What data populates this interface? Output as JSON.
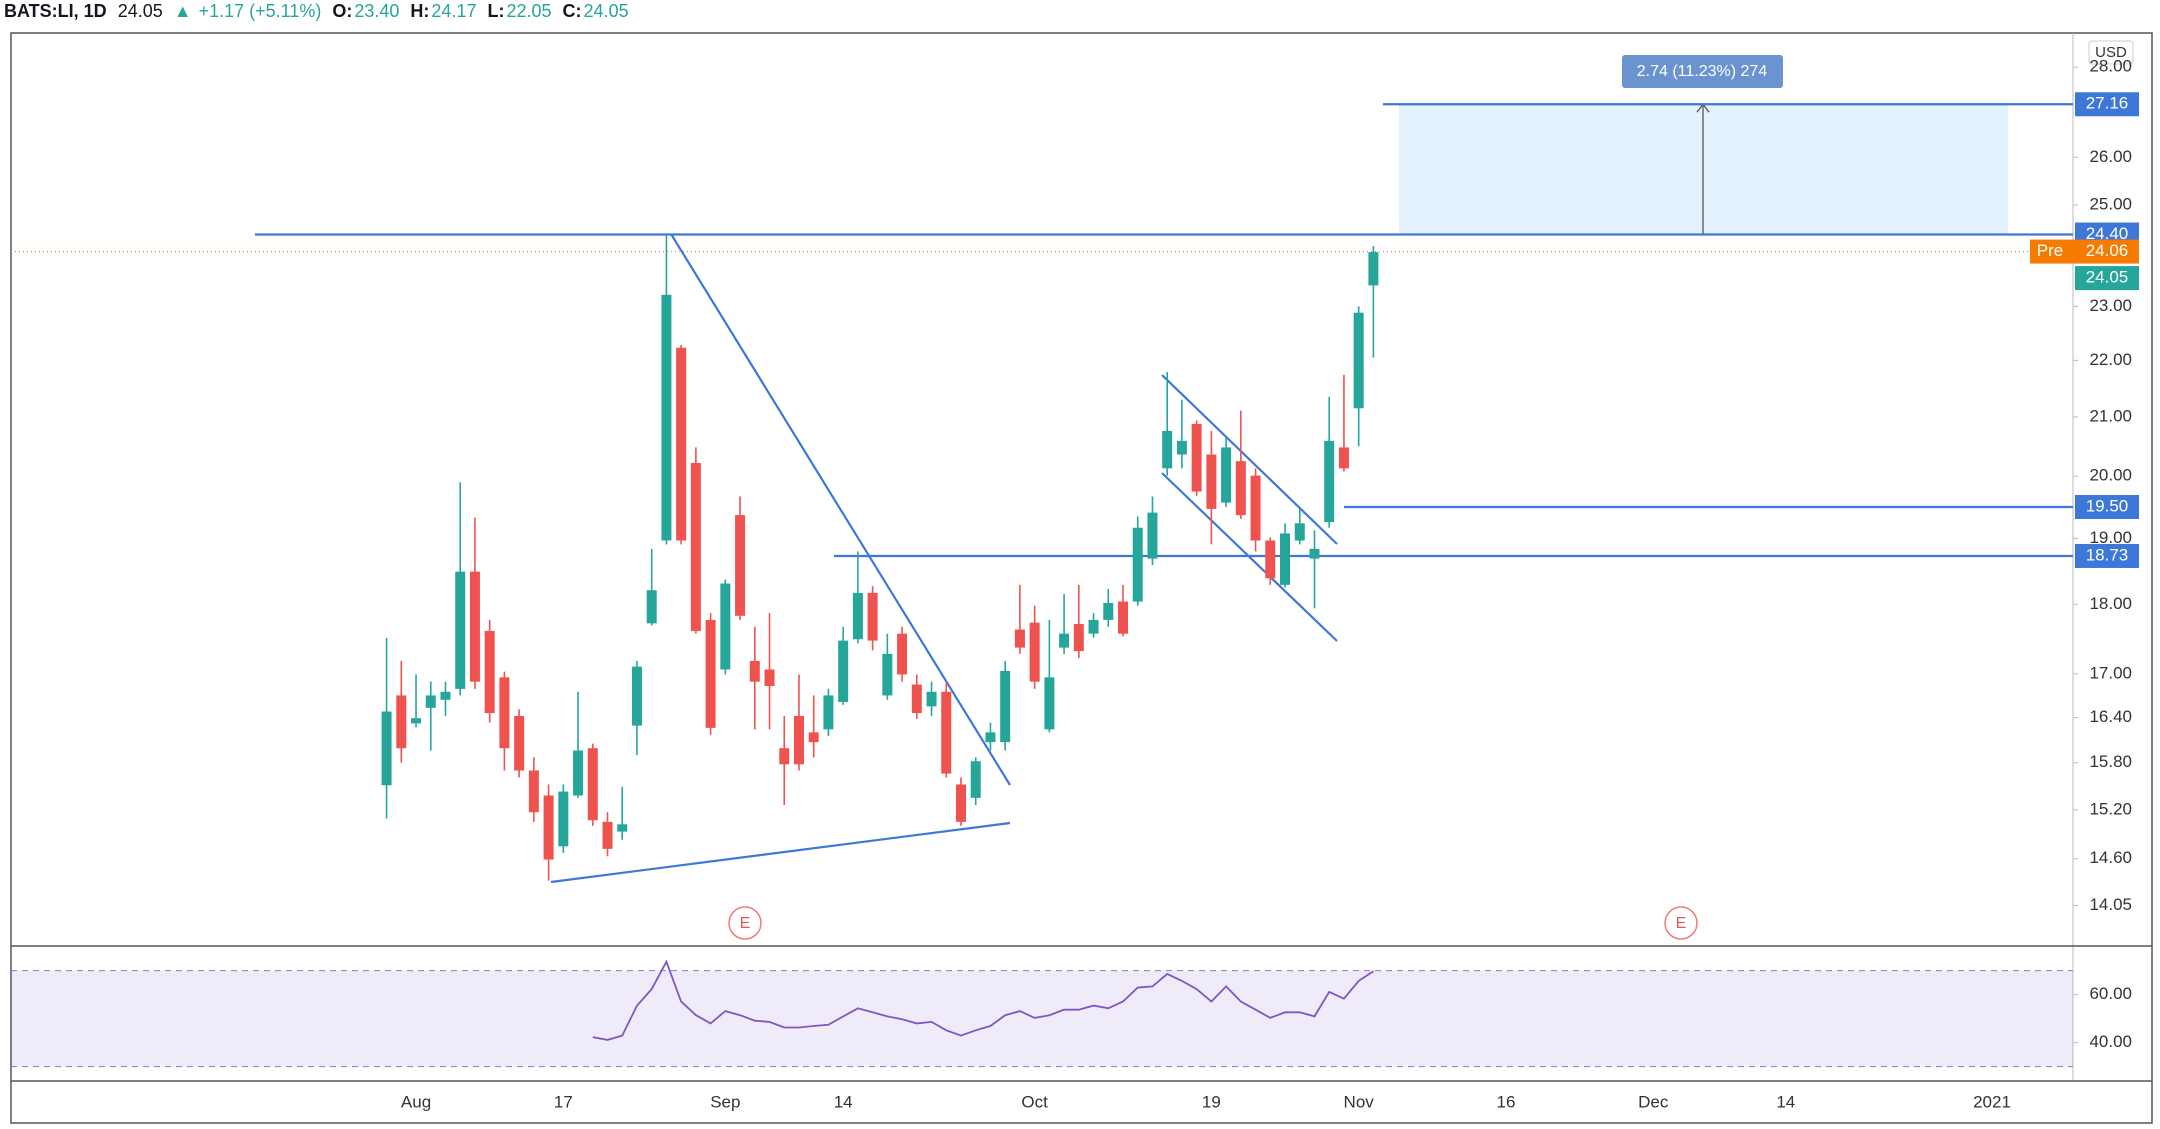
{
  "header": {
    "symbol": "BATS:LI, 1D",
    "price": "24.05",
    "arrow": "▲",
    "change": "+1.17 (+5.11%)",
    "ohlc": [
      {
        "key": "O:",
        "value": "23.40"
      },
      {
        "key": "H:",
        "value": "24.17"
      },
      {
        "key": "L:",
        "value": "22.05"
      },
      {
        "key": "C:",
        "value": "24.05"
      }
    ]
  },
  "chart_data": {
    "type": "candlestick",
    "currency": "USD",
    "log": true,
    "categories": [
      null,
      null,
      null,
      null,
      null,
      null,
      null,
      null,
      null,
      null,
      null,
      null,
      null,
      null,
      null,
      null,
      null,
      null,
      null,
      null,
      null,
      null,
      null,
      null,
      null,
      null,
      null,
      "Aug",
      null,
      null,
      null,
      null,
      null,
      null,
      null,
      null,
      null,
      "17",
      null,
      null,
      null,
      null,
      null,
      null,
      null,
      null,
      null,
      null,
      "Sep",
      null,
      null,
      null,
      null,
      null,
      null,
      null,
      "14",
      null,
      null,
      null,
      null,
      null,
      null,
      null,
      null,
      null,
      null,
      null,
      null,
      "Oct",
      null,
      null,
      null,
      null,
      null,
      null,
      null,
      null,
      null,
      null,
      null,
      "19",
      null,
      null,
      null,
      null,
      null,
      null,
      null,
      null,
      null,
      "Nov",
      null,
      null,
      null,
      null,
      null,
      null,
      null,
      null,
      null,
      "16",
      null,
      null,
      null,
      null,
      null,
      null,
      null,
      null,
      null,
      "Dec",
      null,
      null,
      null,
      null,
      null,
      null,
      null,
      null,
      "14",
      null,
      null,
      null,
      null,
      null,
      null,
      null,
      null,
      null,
      null,
      null,
      null,
      null,
      "2021",
      null,
      null,
      null,
      null,
      null
    ],
    "open": [
      null,
      null,
      null,
      null,
      null,
      null,
      null,
      null,
      null,
      null,
      null,
      null,
      null,
      null,
      null,
      null,
      null,
      null,
      null,
      null,
      null,
      null,
      null,
      null,
      null,
      15.51,
      16.7,
      16.32,
      16.53,
      16.64,
      16.79,
      18.49,
      17.61,
      16.95,
      16.42,
      15.7,
      15.38,
      14.75,
      15.38,
      15.99,
      15.05,
      14.93,
      16.29,
      17.72,
      18.97,
      22.23,
      20.22,
      17.77,
      17.06,
      19.37,
      17.18,
      17.06,
      15.99,
      16.42,
      16.2,
      16.24,
      16.61,
      17.49,
      18.17,
      16.7,
      17.57,
      16.85,
      16.55,
      16.75,
      15.52,
      15.35,
      16.07,
      16.07,
      17.63,
      17.73,
      16.24,
      17.37,
      17.71,
      17.57,
      17.77,
      18.04,
      18.04,
      18.69,
      20.13,
      20.36,
      20.88,
      20.36,
      19.57,
      20.25,
      20.01,
      18.97,
      18.29,
      18.97,
      18.69,
      19.26,
      20.48,
      21.15,
      23.4,
      null,
      null,
      null,
      null,
      null,
      null,
      null,
      null,
      null,
      null,
      null,
      null,
      null,
      null,
      null,
      null,
      null,
      null,
      null,
      null,
      null,
      null,
      null,
      null,
      null,
      null,
      null,
      null,
      null,
      null,
      null,
      null,
      null,
      null,
      null,
      null,
      null,
      null,
      null,
      null,
      null,
      null,
      null,
      null,
      null,
      null,
      null
    ],
    "high": [
      null,
      null,
      null,
      null,
      null,
      null,
      null,
      null,
      null,
      null,
      null,
      null,
      null,
      null,
      null,
      null,
      null,
      null,
      null,
      null,
      null,
      null,
      null,
      null,
      null,
      17.51,
      17.18,
      16.99,
      16.89,
      16.89,
      19.9,
      19.33,
      17.77,
      17.03,
      16.51,
      15.87,
      15.52,
      15.52,
      16.75,
      16.05,
      15.17,
      15.49,
      17.18,
      18.84,
      24.4,
      22.28,
      20.48,
      17.87,
      18.37,
      19.67,
      17.67,
      17.87,
      16.42,
      16.99,
      16.7,
      16.79,
      17.67,
      18.8,
      18.27,
      17.57,
      17.67,
      16.99,
      16.89,
      16.89,
      15.61,
      15.87,
      16.33,
      17.18,
      18.29,
      17.98,
      17.77,
      18.15,
      18.29,
      17.87,
      18.23,
      18.29,
      19.35,
      19.67,
      21.79,
      21.3,
      20.94,
      20.76,
      20.65,
      21.11,
      20.13,
      19.02,
      19.24,
      19.47,
      19.13,
      21.35,
      21.74,
      23.0,
      24.17,
      null,
      null,
      null,
      null,
      null,
      null,
      null,
      null,
      null,
      null,
      null,
      null,
      null,
      null,
      null,
      null,
      null,
      null,
      null,
      null,
      null,
      null,
      null,
      null,
      null,
      null,
      null,
      null,
      null,
      null,
      null,
      null,
      null,
      null,
      null,
      null,
      null,
      null,
      null,
      null,
      null,
      null,
      null,
      null,
      null,
      null,
      null
    ],
    "low": [
      null,
      null,
      null,
      null,
      null,
      null,
      null,
      null,
      null,
      null,
      null,
      null,
      null,
      null,
      null,
      null,
      null,
      null,
      null,
      null,
      null,
      null,
      null,
      null,
      null,
      15.09,
      15.8,
      16.27,
      15.96,
      16.42,
      16.7,
      16.79,
      16.33,
      15.7,
      15.61,
      15.05,
      14.34,
      14.67,
      15.35,
      15.0,
      14.63,
      14.83,
      15.9,
      17.69,
      18.91,
      18.91,
      17.57,
      16.17,
      16.99,
      17.77,
      16.24,
      16.24,
      15.26,
      15.7,
      15.87,
      16.15,
      16.57,
      17.43,
      17.33,
      16.64,
      16.89,
      16.38,
      16.42,
      15.61,
      15.0,
      15.26,
      15.96,
      15.96,
      17.28,
      16.79,
      16.2,
      17.28,
      17.22,
      17.51,
      17.67,
      17.53,
      17.98,
      18.59,
      20.01,
      20.13,
      19.68,
      18.91,
      19.5,
      19.31,
      18.8,
      18.29,
      18.25,
      18.91,
      17.94,
      19.17,
      20.08,
      20.5,
      22.05,
      null,
      null,
      null,
      null,
      null,
      null,
      null,
      null,
      null,
      null,
      null,
      null,
      null,
      null,
      null,
      null,
      null,
      null,
      null,
      null,
      null,
      null,
      null,
      null,
      null,
      null,
      null,
      null,
      null,
      null,
      null,
      null,
      null,
      null,
      null,
      null,
      null,
      null,
      null,
      null,
      null,
      null,
      null,
      null,
      null,
      null,
      null
    ],
    "close": [
      null,
      null,
      null,
      null,
      null,
      null,
      null,
      null,
      null,
      null,
      null,
      null,
      null,
      null,
      null,
      null,
      null,
      null,
      null,
      null,
      null,
      null,
      null,
      null,
      null,
      16.48,
      15.99,
      16.39,
      16.7,
      16.75,
      18.49,
      16.89,
      16.46,
      15.99,
      15.7,
      15.17,
      14.59,
      15.43,
      15.96,
      15.07,
      14.72,
      15.02,
      17.1,
      18.21,
      23.22,
      18.97,
      17.61,
      16.26,
      18.31,
      17.83,
      16.89,
      16.83,
      15.78,
      15.78,
      16.07,
      16.7,
      17.47,
      18.17,
      17.47,
      17.28,
      16.99,
      16.46,
      16.75,
      15.66,
      15.05,
      15.82,
      16.2,
      17.04,
      17.37,
      16.89,
      16.95,
      17.57,
      17.32,
      17.77,
      18.02,
      17.57,
      19.17,
      19.41,
      20.76,
      20.59,
      19.75,
      19.47,
      20.48,
      19.37,
      18.97,
      18.39,
      19.08,
      19.24,
      18.84,
      20.59,
      20.13,
      22.88,
      24.05,
      null,
      null,
      null,
      null,
      null,
      null,
      null,
      null,
      null,
      null,
      null,
      null,
      null,
      null,
      null,
      null,
      null,
      null,
      null,
      null,
      null,
      null,
      null,
      null,
      null,
      null,
      null,
      null,
      null,
      null,
      null,
      null,
      null,
      null,
      null,
      null,
      null,
      null,
      null,
      null,
      null,
      null,
      null,
      null,
      null,
      null,
      null
    ],
    "up_color": "#26a69a",
    "down_color": "#ef5350",
    "ylim": [
      13.6,
      28.8
    ],
    "yticks": [
      14.05,
      {
        "value": 14.6,
        "label": "14.60"
      },
      {
        "value": 15.2,
        "label": "15.20"
      },
      {
        "value": 15.8,
        "label": "15.80"
      },
      {
        "value": 16.4,
        "label": "16.40"
      },
      {
        "value": 17,
        "label": "17.00"
      },
      {
        "value": 18,
        "label": "18.00"
      },
      {
        "value": 19,
        "label": "19.00"
      },
      {
        "value": 20,
        "label": "20.00"
      },
      {
        "value": 21,
        "label": "21.00"
      },
      {
        "value": 22,
        "label": "22.00"
      },
      {
        "value": 23,
        "label": "23.00"
      },
      {
        "value": 25,
        "label": "25.00"
      },
      {
        "value": 26,
        "label": "26.00"
      },
      {
        "value": 28,
        "label": "28.00"
      }
    ],
    "levels": [
      {
        "value": 27.16,
        "label": "27.16"
      },
      {
        "value": 24.4,
        "label": "24.40"
      },
      {
        "value": 19.5,
        "label": "19.50"
      },
      {
        "value": 18.73,
        "label": "18.73"
      }
    ],
    "level_color": "#3d78d8",
    "measure": {
      "label": "2.74 (11.23%) 274"
    },
    "premarket": {
      "name": "Pre",
      "value": 24.06,
      "label": "24.06",
      "color": "#f57c00"
    },
    "last": {
      "value": 24.05,
      "label": "24.05",
      "color": "#26a69a"
    },
    "events": [
      {
        "label": "E"
      },
      {
        "label": "E"
      }
    ],
    "rsi": {
      "color": "#7e57c2",
      "ylim": [
        24,
        79.4
      ],
      "band": [
        30,
        70
      ],
      "yticks": [
        {
          "value": 60,
          "label": "60.00"
        },
        {
          "value": 40,
          "label": "40.00"
        }
      ],
      "values": [
        null,
        null,
        null,
        null,
        null,
        null,
        null,
        null,
        null,
        null,
        null,
        null,
        null,
        null,
        null,
        null,
        null,
        null,
        null,
        null,
        null,
        null,
        null,
        null,
        null,
        null,
        null,
        null,
        null,
        null,
        null,
        null,
        null,
        null,
        null,
        null,
        null,
        null,
        null,
        42.3,
        41.1,
        42.9,
        55.4,
        62.3,
        73.7,
        57.1,
        51.4,
        48.0,
        53.1,
        51.4,
        49.1,
        48.6,
        46.3,
        46.3,
        46.9,
        47.4,
        50.9,
        54.3,
        52.6,
        50.9,
        49.7,
        48.0,
        48.6,
        45.1,
        42.9,
        45.1,
        46.9,
        51.4,
        53.1,
        50.3,
        51.4,
        53.7,
        53.7,
        55.4,
        54.3,
        57.1,
        62.9,
        63.4,
        68.6,
        65.7,
        62.3,
        57.1,
        63.4,
        57.1,
        53.7,
        50.3,
        52.6,
        52.6,
        50.9,
        61.1,
        58.3,
        65.7,
        69.7,
        null,
        null,
        null,
        null,
        null,
        null,
        null,
        null,
        null,
        null,
        null,
        null,
        null,
        null,
        null,
        null,
        null,
        null,
        null,
        null,
        null,
        null,
        null,
        null,
        null,
        null,
        null,
        null,
        null,
        null,
        null,
        null,
        null,
        null,
        null,
        null,
        null,
        null,
        null,
        null,
        null,
        null,
        null,
        null,
        null,
        null,
        null
      ]
    }
  }
}
